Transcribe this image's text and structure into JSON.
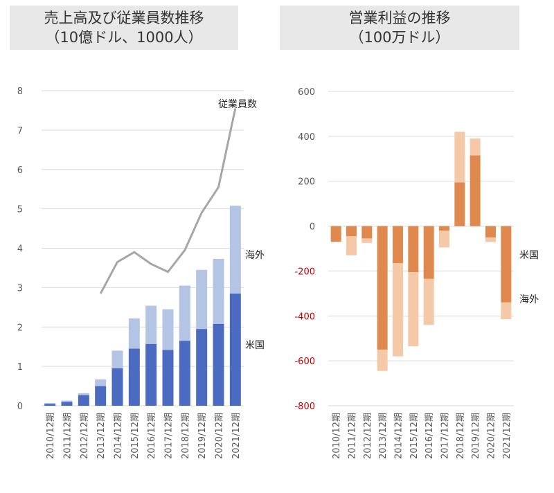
{
  "colors": {
    "us_sales": "#4a6bc0",
    "overseas_sales": "#b4c4e4",
    "employees_line": "#a6a6a6",
    "us_profit": "#e0894e",
    "overseas_profit": "#f5c9a8",
    "negative_tick": "#c00000",
    "grid": "#d9d9d9"
  },
  "chart_data": [
    {
      "type": "bar",
      "stacked": true,
      "title": [
        "売上高及び従業員数推移",
        "（10億ドル、1000人）"
      ],
      "categories": [
        "2010/12期",
        "2011/12期",
        "2012/12期",
        "2013/12期",
        "2014/12期",
        "2015/12期",
        "2016/12期",
        "2017/12期",
        "2018/12期",
        "2019/12期",
        "2020/12期",
        "2021/12期"
      ],
      "ylim": [
        0,
        8
      ],
      "yticks": [
        "0",
        "1",
        "2",
        "3",
        "4",
        "5",
        "6",
        "7",
        "8"
      ],
      "grid": true,
      "series": [
        {
          "name": "米国",
          "values": [
            0.05,
            0.1,
            0.27,
            0.5,
            0.95,
            1.45,
            1.57,
            1.42,
            1.65,
            1.95,
            2.08,
            2.85
          ]
        },
        {
          "name": "海外",
          "values": [
            0.02,
            0.03,
            0.05,
            0.17,
            0.45,
            0.77,
            0.97,
            1.03,
            1.4,
            1.5,
            1.65,
            2.23
          ]
        },
        {
          "name": "従業員数",
          "type": "line",
          "values": [
            null,
            null,
            null,
            2.85,
            3.65,
            3.9,
            3.6,
            3.4,
            3.95,
            4.9,
            5.55,
            7.55
          ]
        }
      ]
    },
    {
      "type": "bar",
      "stacked": true,
      "title": [
        "営業利益の推移",
        "（100万ドル）"
      ],
      "categories": [
        "2010/12期",
        "2011/12期",
        "2012/12期",
        "2013/12期",
        "2014/12期",
        "2015/12期",
        "2016/12期",
        "2017/12期",
        "2018/12期",
        "2019/12期",
        "2020/12期",
        "2021/12期"
      ],
      "ylim": [
        -800,
        600
      ],
      "yticks": [
        "-800",
        "-600",
        "-400",
        "-200",
        "0",
        "200",
        "400",
        "600"
      ],
      "grid": true,
      "series": [
        {
          "name": "米国",
          "values": [
            -70,
            -45,
            -55,
            -550,
            -165,
            -205,
            -235,
            -20,
            195,
            315,
            -70,
            -340
          ]
        },
        {
          "name": "海外",
          "values": [
            0,
            -85,
            -20,
            -95,
            -415,
            -330,
            -205,
            -75,
            225,
            75,
            20,
            -75
          ]
        }
      ]
    }
  ]
}
